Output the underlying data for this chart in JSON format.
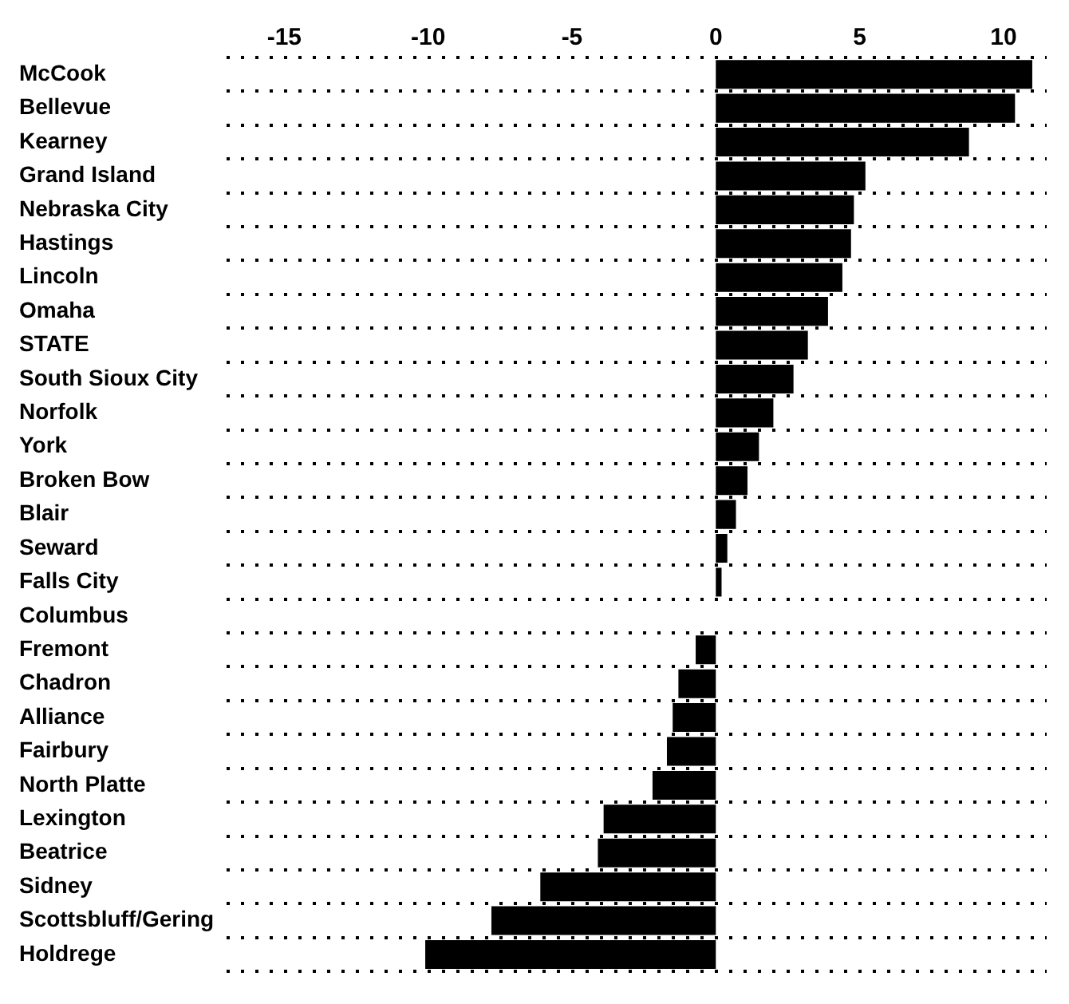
{
  "chart_data": {
    "type": "bar",
    "orientation": "horizontal",
    "categories": [
      "McCook",
      "Bellevue",
      "Kearney",
      "Grand Island",
      "Nebraska City",
      "Hastings",
      "Lincoln",
      "Omaha",
      "STATE",
      "South Sioux City",
      "Norfolk",
      "York",
      "Broken Bow",
      "Blair",
      "Seward",
      "Falls City",
      "Columbus",
      "Fremont",
      "Chadron",
      "Alliance",
      "Fairbury",
      "North Platte",
      "Lexington",
      "Beatrice",
      "Sidney",
      "Scottsbluff/Gering",
      "Holdrege"
    ],
    "values": [
      11.0,
      10.4,
      8.8,
      5.2,
      4.8,
      4.7,
      4.4,
      3.9,
      3.2,
      2.7,
      2.0,
      1.5,
      1.1,
      0.7,
      0.4,
      0.2,
      0,
      -0.7,
      -1.3,
      -1.5,
      -1.7,
      -2.2,
      -3.9,
      -4.1,
      -6.1,
      -7.8,
      -10.1
    ],
    "color": "#000000",
    "xlim": [
      -17,
      11.5
    ],
    "xticks": [
      -15,
      -10,
      -5,
      0,
      5,
      10
    ],
    "grid": "y"
  }
}
